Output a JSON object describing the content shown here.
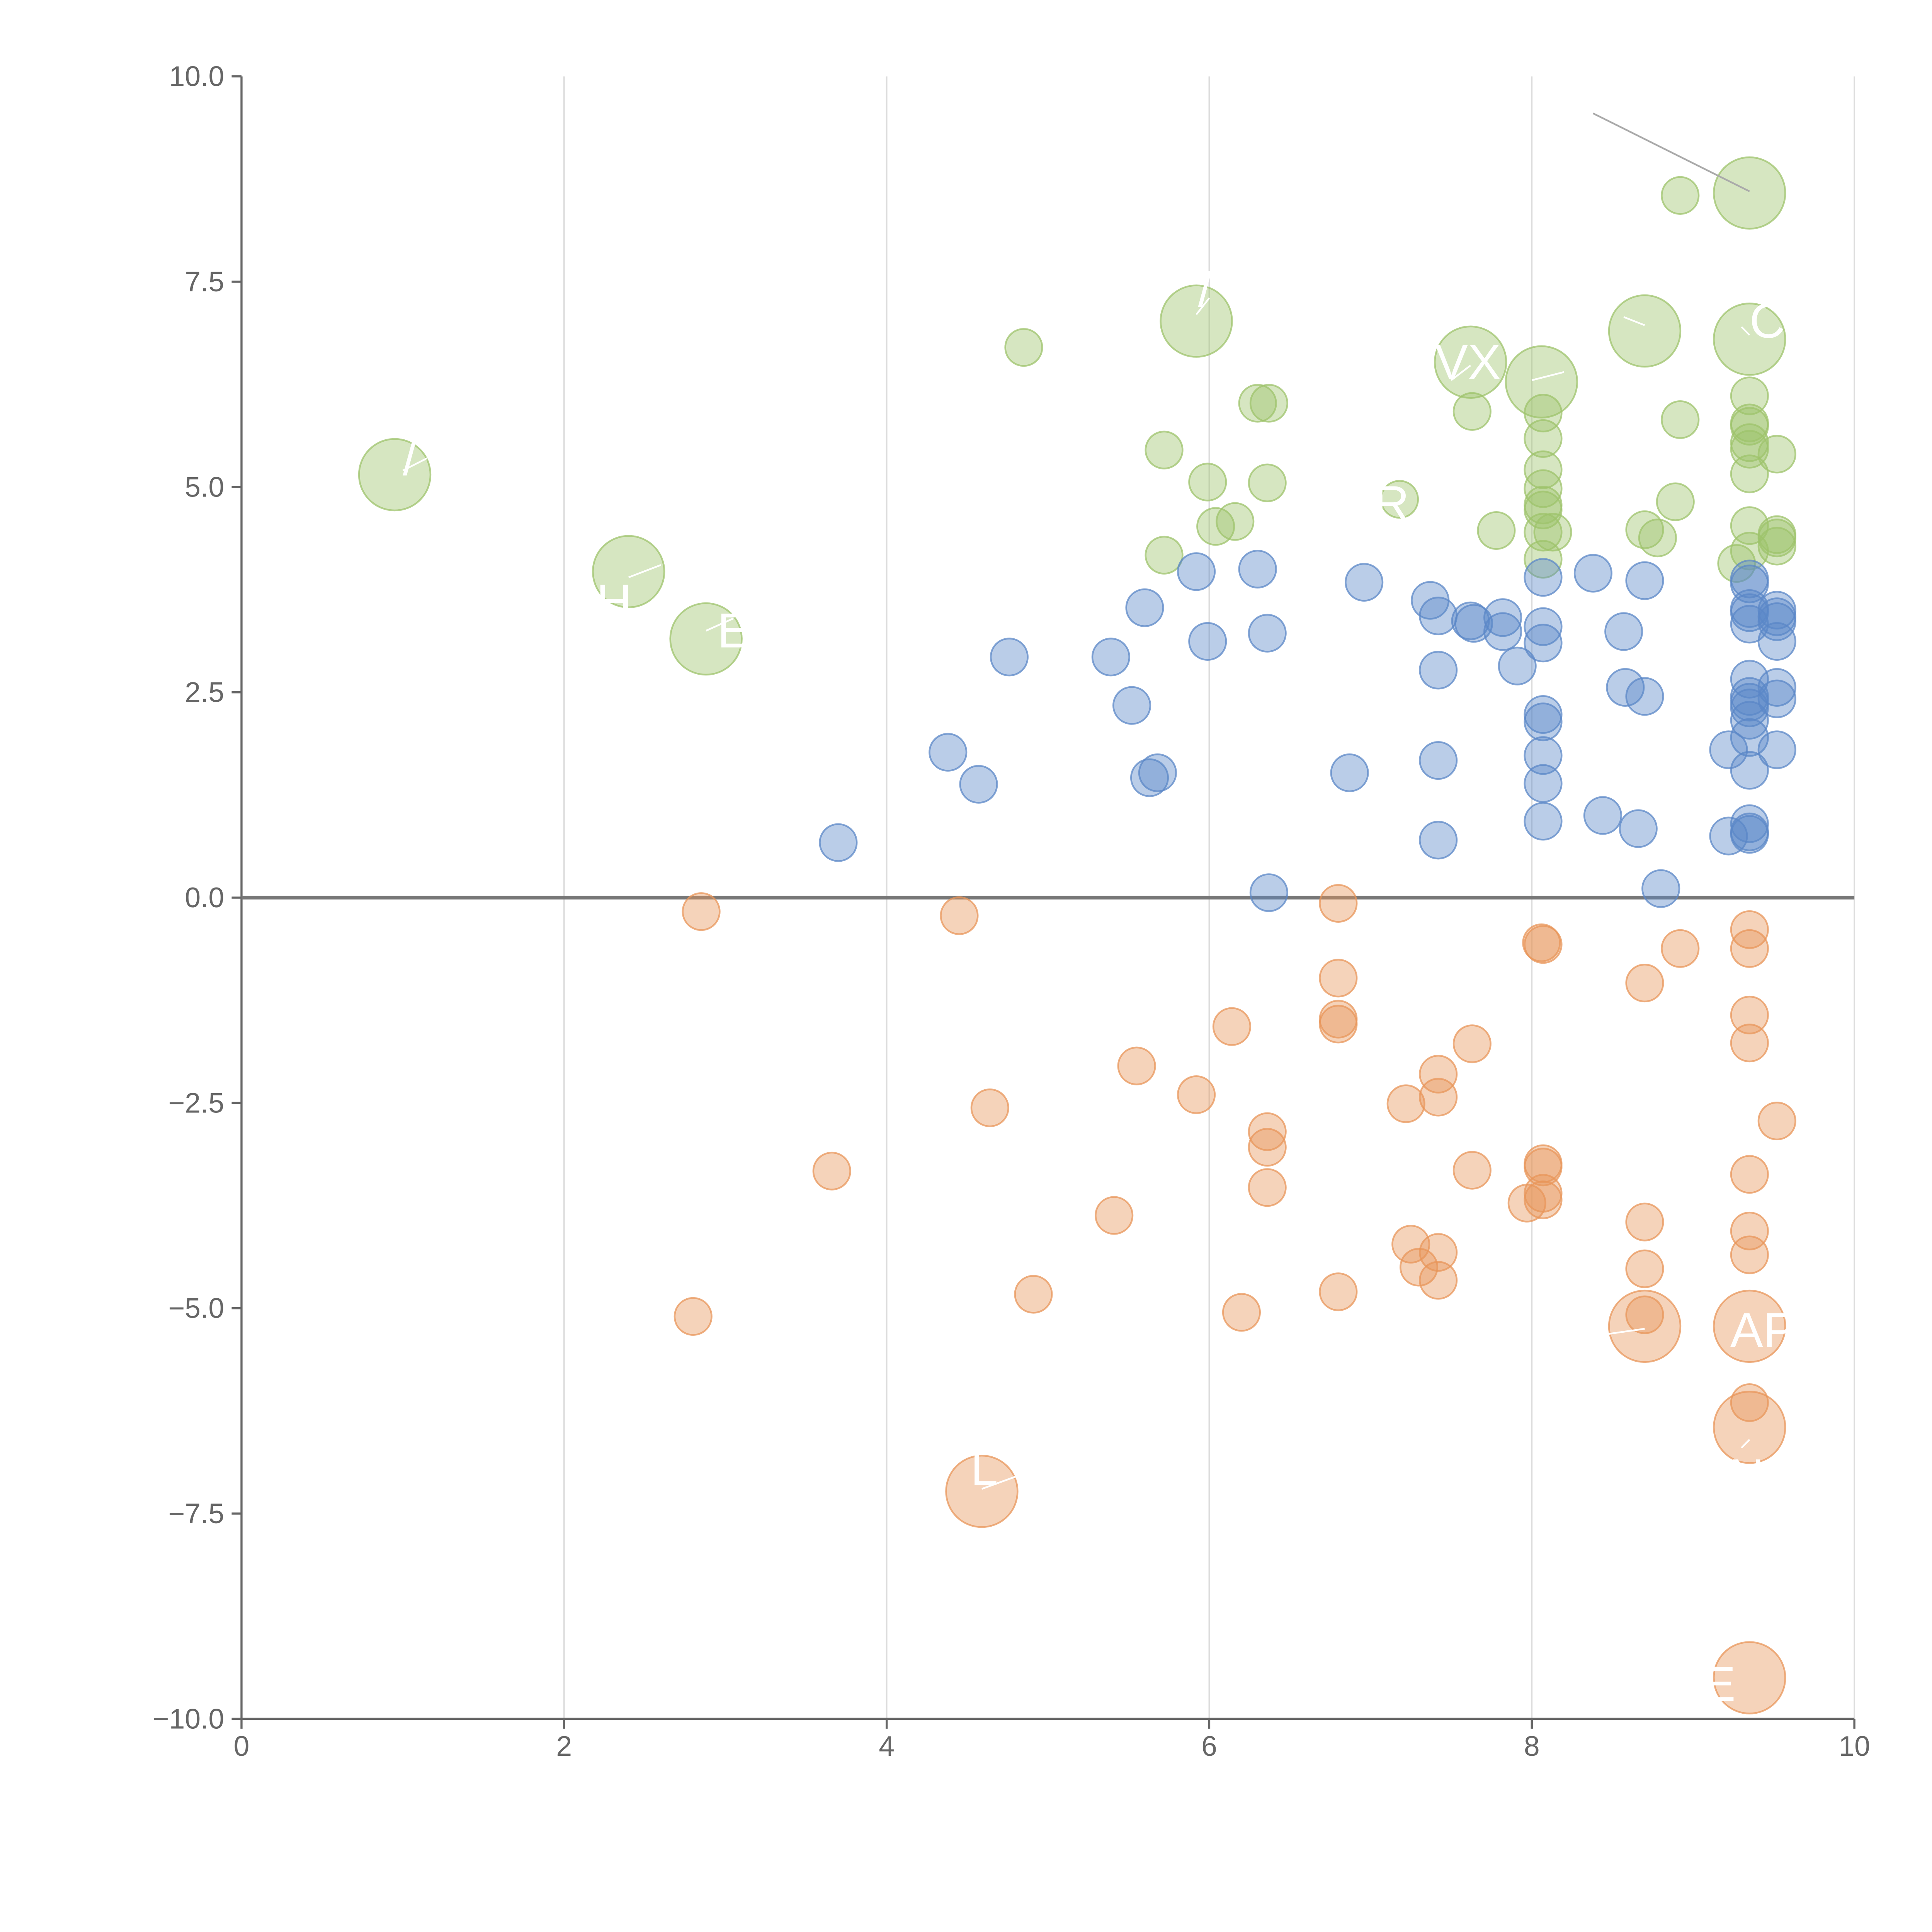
{
  "chart_data": {
    "type": "scatter",
    "title": "",
    "xlabel": "",
    "ylabel": "",
    "xlim": [
      0,
      10
    ],
    "ylim": [
      -10,
      10
    ],
    "grid": "vertical",
    "legend": "none",
    "x_ticks": [
      0,
      2,
      4,
      6,
      8,
      10
    ],
    "x_tick_labels": [
      "0",
      "2",
      "4",
      "6",
      "8",
      "10"
    ],
    "y_ticks": [
      10,
      7.5,
      5,
      2.5,
      0,
      -2.5,
      -5,
      -7.5,
      -10
    ],
    "y_tick_labels": [
      "10.0",
      "7.5",
      "5.0",
      "2.5",
      "0.0",
      "−2.5",
      "−5.0",
      "−7.5",
      "−10.0"
    ],
    "reference_line": {
      "y": 0
    },
    "colors": {
      "green": "#9dc36b",
      "blue": "#5b87c7",
      "orange": "#e8955a",
      "axis": "#666666",
      "grid": "#dddddd",
      "zero_line": "#777777"
    },
    "series": [
      {
        "name": "green",
        "color": "#9dc36b",
        "points": [
          [
            0.95,
            5.15,
            2
          ],
          [
            2.4,
            3.97,
            2
          ],
          [
            2.88,
            3.15,
            2
          ],
          [
            5.92,
            7.02,
            2
          ],
          [
            9.35,
            8.58,
            2
          ],
          [
            8.7,
            6.9,
            2
          ],
          [
            9.35,
            6.8,
            2
          ],
          [
            7.62,
            6.52,
            2
          ],
          [
            8.06,
            6.28,
            2
          ],
          [
            7.18,
            4.85,
            1
          ],
          [
            4.85,
            6.7,
            1
          ],
          [
            6.3,
            6.02,
            1
          ],
          [
            6.37,
            6.02,
            1
          ],
          [
            5.72,
            5.45,
            1
          ],
          [
            5.99,
            5.06,
            1
          ],
          [
            6.36,
            5.05,
            1
          ],
          [
            6.04,
            4.52,
            1
          ],
          [
            6.16,
            4.58,
            1
          ],
          [
            5.72,
            4.17,
            1
          ],
          [
            7.63,
            5.92,
            1
          ],
          [
            7.78,
            4.47,
            1
          ],
          [
            8.92,
            8.55,
            1
          ],
          [
            8.92,
            5.82,
            1
          ],
          [
            8.89,
            4.82,
            1
          ],
          [
            8.7,
            4.48,
            1
          ],
          [
            8.78,
            4.38,
            1
          ],
          [
            8.07,
            5.9,
            1
          ],
          [
            8.07,
            5.59,
            1
          ],
          [
            8.07,
            5.21,
            1
          ],
          [
            8.07,
            4.98,
            1
          ],
          [
            8.07,
            4.78,
            1
          ],
          [
            8.07,
            4.72,
            1
          ],
          [
            8.07,
            4.45,
            1
          ],
          [
            8.13,
            4.45,
            1
          ],
          [
            8.07,
            4.12,
            1
          ],
          [
            9.35,
            6.11,
            1
          ],
          [
            9.35,
            5.78,
            1
          ],
          [
            9.35,
            5.74,
            1
          ],
          [
            9.35,
            5.54,
            1
          ],
          [
            9.35,
            5.46,
            1
          ],
          [
            9.35,
            5.16,
            1
          ],
          [
            9.52,
            5.4,
            1
          ],
          [
            9.35,
            4.53,
            1
          ],
          [
            9.52,
            4.42,
            1
          ],
          [
            9.52,
            4.38,
            1
          ],
          [
            9.52,
            4.28,
            1
          ],
          [
            9.35,
            4.22,
            1
          ],
          [
            9.27,
            4.07,
            1
          ]
        ]
      },
      {
        "name": "blue",
        "color": "#5b87c7",
        "points": [
          [
            3.7,
            0.67,
            1
          ],
          [
            4.38,
            1.77,
            1
          ],
          [
            4.57,
            1.38,
            1
          ],
          [
            4.76,
            2.93,
            1
          ],
          [
            5.39,
            2.93,
            1
          ],
          [
            5.52,
            2.34,
            1
          ],
          [
            5.6,
            3.53,
            1
          ],
          [
            5.63,
            1.46,
            1
          ],
          [
            5.68,
            1.52,
            1
          ],
          [
            5.92,
            3.97,
            1
          ],
          [
            5.99,
            3.12,
            1
          ],
          [
            6.3,
            4.0,
            1
          ],
          [
            6.36,
            3.22,
            1
          ],
          [
            6.37,
            0.06,
            1
          ],
          [
            6.87,
            1.52,
            1
          ],
          [
            6.96,
            3.84,
            1
          ],
          [
            7.37,
            3.62,
            1
          ],
          [
            7.42,
            3.43,
            1
          ],
          [
            7.42,
            2.77,
            1
          ],
          [
            7.42,
            1.67,
            1
          ],
          [
            7.42,
            0.7,
            1
          ],
          [
            7.62,
            3.37,
            1
          ],
          [
            7.64,
            3.34,
            1
          ],
          [
            7.82,
            3.41,
            1
          ],
          [
            7.82,
            3.24,
            1
          ],
          [
            7.91,
            2.82,
            1
          ],
          [
            8.07,
            3.9,
            1
          ],
          [
            8.07,
            3.3,
            1
          ],
          [
            8.07,
            3.1,
            1
          ],
          [
            8.07,
            2.23,
            1
          ],
          [
            8.07,
            2.14,
            1
          ],
          [
            8.07,
            1.73,
            1
          ],
          [
            8.07,
            1.39,
            1
          ],
          [
            8.07,
            0.93,
            1
          ],
          [
            8.38,
            3.95,
            1
          ],
          [
            8.44,
            1.0,
            1
          ],
          [
            8.57,
            3.24,
            1
          ],
          [
            8.58,
            2.56,
            1
          ],
          [
            8.66,
            0.84,
            1
          ],
          [
            8.7,
            3.86,
            1
          ],
          [
            8.7,
            2.45,
            1
          ],
          [
            8.8,
            0.11,
            1
          ],
          [
            9.35,
            3.88,
            1
          ],
          [
            9.35,
            3.82,
            1
          ],
          [
            9.35,
            3.52,
            1
          ],
          [
            9.35,
            3.47,
            1
          ],
          [
            9.35,
            3.33,
            1
          ],
          [
            9.35,
            2.66,
            1
          ],
          [
            9.35,
            2.45,
            1
          ],
          [
            9.35,
            2.38,
            1
          ],
          [
            9.35,
            2.31,
            1
          ],
          [
            9.35,
            2.16,
            1
          ],
          [
            9.35,
            1.95,
            1
          ],
          [
            9.35,
            1.55,
            1
          ],
          [
            9.35,
            0.9,
            1
          ],
          [
            9.35,
            0.8,
            1
          ],
          [
            9.35,
            0.77,
            1
          ],
          [
            9.22,
            1.8,
            1
          ],
          [
            9.22,
            0.75,
            1
          ],
          [
            9.52,
            3.5,
            1
          ],
          [
            9.52,
            3.42,
            1
          ],
          [
            9.52,
            3.36,
            1
          ],
          [
            9.52,
            3.12,
            1
          ],
          [
            9.52,
            2.56,
            1
          ],
          [
            9.52,
            2.42,
            1
          ],
          [
            9.52,
            1.8,
            1
          ]
        ]
      },
      {
        "name": "orange",
        "color": "#e8955a",
        "points": [
          [
            2.85,
            -0.17,
            1
          ],
          [
            4.45,
            -0.22,
            1
          ],
          [
            6.8,
            -0.07,
            1
          ],
          [
            8.06,
            -0.55,
            1
          ],
          [
            8.07,
            -0.57,
            1
          ],
          [
            9.35,
            -0.39,
            1
          ],
          [
            9.35,
            -0.62,
            1
          ],
          [
            8.92,
            -0.62,
            1
          ],
          [
            8.7,
            -1.04,
            1
          ],
          [
            6.8,
            -0.98,
            1
          ],
          [
            6.8,
            -1.48,
            1
          ],
          [
            6.8,
            -1.54,
            1
          ],
          [
            6.14,
            -1.57,
            1
          ],
          [
            7.63,
            -1.78,
            1
          ],
          [
            9.35,
            -1.43,
            1
          ],
          [
            9.35,
            -1.77,
            1
          ],
          [
            5.55,
            -2.05,
            1
          ],
          [
            7.42,
            -2.15,
            1
          ],
          [
            7.42,
            -2.43,
            1
          ],
          [
            5.92,
            -2.4,
            1
          ],
          [
            4.64,
            -2.56,
            1
          ],
          [
            7.22,
            -2.51,
            1
          ],
          [
            9.52,
            -2.72,
            1
          ],
          [
            6.36,
            -2.85,
            1
          ],
          [
            6.36,
            -3.04,
            1
          ],
          [
            3.66,
            -3.33,
            1
          ],
          [
            7.63,
            -3.32,
            1
          ],
          [
            8.07,
            -3.24,
            1
          ],
          [
            8.07,
            -3.28,
            1
          ],
          [
            9.35,
            -3.37,
            1
          ],
          [
            6.36,
            -3.53,
            1
          ],
          [
            8.07,
            -3.6,
            1
          ],
          [
            8.07,
            -3.68,
            1
          ],
          [
            7.97,
            -3.72,
            1
          ],
          [
            5.41,
            -3.87,
            1
          ],
          [
            8.7,
            -3.95,
            1
          ],
          [
            9.35,
            -4.06,
            1
          ],
          [
            9.35,
            -4.35,
            1
          ],
          [
            7.42,
            -4.32,
            1
          ],
          [
            7.25,
            -4.22,
            1
          ],
          [
            7.3,
            -4.5,
            1
          ],
          [
            8.7,
            -4.52,
            1
          ],
          [
            7.42,
            -4.66,
            1
          ],
          [
            4.91,
            -4.83,
            1
          ],
          [
            6.8,
            -4.8,
            1
          ],
          [
            2.8,
            -5.1,
            1
          ],
          [
            6.2,
            -5.05,
            1
          ],
          [
            8.7,
            -5.08,
            1
          ],
          [
            8.7,
            -5.22,
            2
          ],
          [
            9.35,
            -5.22,
            2
          ],
          [
            9.35,
            -6.15,
            1
          ],
          [
            9.35,
            -6.45,
            2
          ],
          [
            4.59,
            -7.23,
            2
          ],
          [
            9.35,
            -9.5,
            2
          ]
        ]
      }
    ],
    "leader_lines": [
      {
        "from": [
          8.38,
          9.55
        ],
        "to": [
          9.35,
          8.6
        ],
        "color": "#aaaaaa"
      },
      {
        "from": [
          1.0,
          5.2
        ],
        "to": [
          1.15,
          5.35
        ],
        "color": "#ffffff"
      },
      {
        "from": [
          2.4,
          3.9
        ],
        "to": [
          2.6,
          4.05
        ],
        "color": "#ffffff"
      },
      {
        "from": [
          2.88,
          3.25
        ],
        "to": [
          3.05,
          3.4
        ],
        "color": "#ffffff"
      },
      {
        "from": [
          5.92,
          7.1
        ],
        "to": [
          6.0,
          7.3
        ],
        "color": "#ffffff"
      },
      {
        "from": [
          7.5,
          6.3
        ],
        "to": [
          7.62,
          6.48
        ],
        "color": "#ffffff"
      },
      {
        "from": [
          8.0,
          6.3
        ],
        "to": [
          8.2,
          6.4
        ],
        "color": "#ffffff"
      },
      {
        "from": [
          8.57,
          7.07
        ],
        "to": [
          8.7,
          6.97
        ],
        "color": "#ffffff"
      },
      {
        "from": [
          9.3,
          6.95
        ],
        "to": [
          9.35,
          6.85
        ],
        "color": "#ffffff"
      },
      {
        "from": [
          8.45,
          -5.32
        ],
        "to": [
          8.7,
          -5.25
        ],
        "color": "#ffffff"
      },
      {
        "from": [
          9.3,
          -6.7
        ],
        "to": [
          9.35,
          -6.6
        ],
        "color": "#ffffff"
      },
      {
        "from": [
          4.59,
          -7.2
        ],
        "to": [
          4.8,
          -7.05
        ],
        "color": "#ffffff"
      }
    ],
    "callouts": [
      {
        "text": "/",
        "x": 1.0,
        "y": 5.35
      },
      {
        "text": "H",
        "x": 2.2,
        "y": 3.6
      },
      {
        "text": "E",
        "x": 2.95,
        "y": 3.25
      },
      {
        "text": "/",
        "x": 5.93,
        "y": 7.4
      },
      {
        "text": "VX",
        "x": 7.4,
        "y": 6.52
      },
      {
        "text": "R",
        "x": 7.02,
        "y": 4.8
      },
      {
        "text": "C",
        "x": 9.35,
        "y": 7.02
      },
      {
        "text": "APE",
        "x": 9.23,
        "y": -5.27
      },
      {
        "text": "N",
        "x": 9.22,
        "y": -7.05
      },
      {
        "text": "E",
        "x": 9.06,
        "y": -9.58
      },
      {
        "text": "L",
        "x": 4.52,
        "y": -6.95
      }
    ]
  }
}
